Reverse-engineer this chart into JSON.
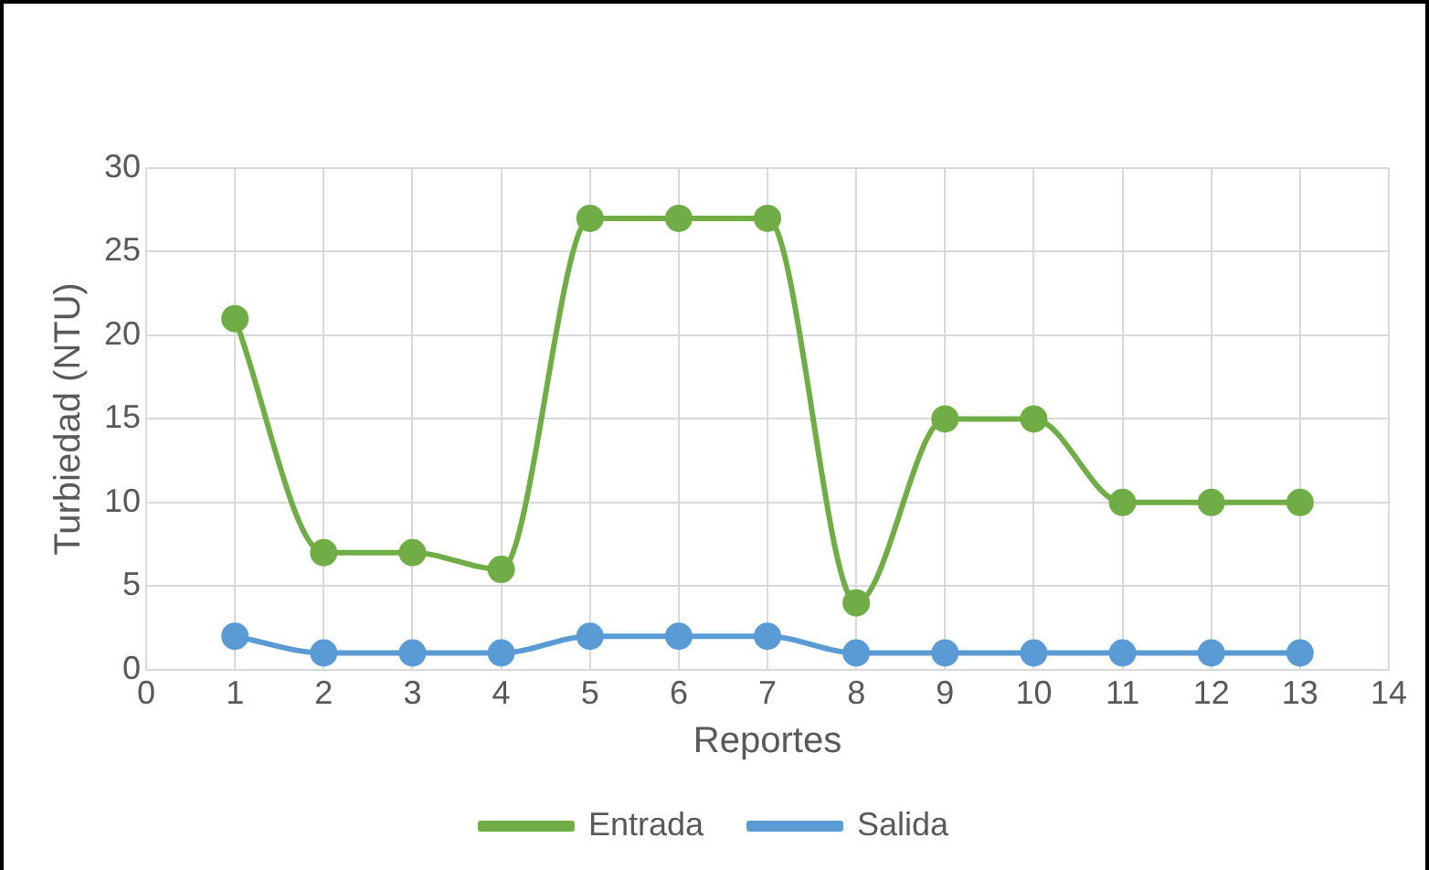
{
  "chart_data": {
    "type": "line",
    "xlabel": "Reportes",
    "ylabel": "Turbiedad (NTU)",
    "x": [
      1,
      2,
      3,
      4,
      5,
      6,
      7,
      8,
      9,
      10,
      11,
      12,
      13
    ],
    "series": [
      {
        "name": "Entrada",
        "color": "#70ad47",
        "values": [
          21,
          7,
          7,
          6,
          27,
          27,
          27,
          4,
          15,
          15,
          10,
          10,
          10
        ]
      },
      {
        "name": "Salida",
        "color": "#5b9bd5",
        "values": [
          2,
          1,
          1,
          1,
          2,
          2,
          2,
          1,
          1,
          1,
          1,
          1,
          1
        ]
      }
    ],
    "xlim": [
      0,
      14
    ],
    "xticks": [
      0,
      1,
      2,
      3,
      4,
      5,
      6,
      7,
      8,
      9,
      10,
      11,
      12,
      13,
      14
    ],
    "ylim": [
      0,
      30
    ],
    "yticks": [
      0,
      5,
      10,
      15,
      20,
      25,
      30
    ],
    "grid": true,
    "legend": "bottom",
    "marker": "circle",
    "line_style": "solid"
  }
}
